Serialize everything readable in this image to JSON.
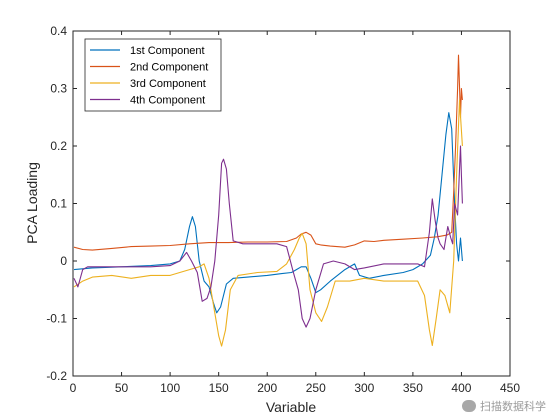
{
  "chart_data": {
    "type": "line",
    "xlabel": "Variable",
    "ylabel": "PCA Loading",
    "xlim": [
      0,
      450
    ],
    "ylim": [
      -0.2,
      0.4
    ],
    "xticks": [
      0,
      50,
      100,
      150,
      200,
      250,
      300,
      350,
      400,
      450
    ],
    "yticks": [
      -0.2,
      -0.1,
      0,
      0.1,
      0.2,
      0.3,
      0.4
    ],
    "xtick_labels": [
      "0",
      "50",
      "100",
      "150",
      "200",
      "250",
      "300",
      "350",
      "400",
      "450"
    ],
    "ytick_labels": [
      "-0.2",
      "-0.1",
      "0",
      "0.1",
      "0.2",
      "0.3",
      "0.4"
    ],
    "legend_position": "top-left",
    "grid": false,
    "series": [
      {
        "name": "1st Component",
        "color": "#0072BD",
        "points": [
          [
            1,
            -0.015
          ],
          [
            20,
            -0.012
          ],
          [
            50,
            -0.01
          ],
          [
            80,
            -0.008
          ],
          [
            100,
            -0.005
          ],
          [
            110,
            0.0
          ],
          [
            115,
            0.02
          ],
          [
            120,
            0.06
          ],
          [
            123,
            0.077
          ],
          [
            126,
            0.06
          ],
          [
            130,
            0.0
          ],
          [
            135,
            -0.035
          ],
          [
            140,
            -0.045
          ],
          [
            145,
            -0.075
          ],
          [
            148,
            -0.09
          ],
          [
            152,
            -0.08
          ],
          [
            158,
            -0.04
          ],
          [
            165,
            -0.03
          ],
          [
            180,
            -0.028
          ],
          [
            200,
            -0.025
          ],
          [
            215,
            -0.022
          ],
          [
            225,
            -0.02
          ],
          [
            230,
            -0.015
          ],
          [
            235,
            -0.01
          ],
          [
            240,
            -0.01
          ],
          [
            245,
            -0.03
          ],
          [
            250,
            -0.055
          ],
          [
            255,
            -0.05
          ],
          [
            265,
            -0.035
          ],
          [
            280,
            -0.015
          ],
          [
            290,
            -0.005
          ],
          [
            295,
            -0.025
          ],
          [
            305,
            -0.03
          ],
          [
            320,
            -0.025
          ],
          [
            340,
            -0.02
          ],
          [
            350,
            -0.015
          ],
          [
            360,
            -0.005
          ],
          [
            368,
            0.01
          ],
          [
            372,
            0.04
          ],
          [
            376,
            0.08
          ],
          [
            380,
            0.15
          ],
          [
            384,
            0.22
          ],
          [
            387,
            0.258
          ],
          [
            390,
            0.23
          ],
          [
            393,
            0.1
          ],
          [
            395,
            0.03
          ],
          [
            397,
            0.0
          ],
          [
            399,
            0.04
          ],
          [
            401,
            0.0
          ]
        ]
      },
      {
        "name": "2nd Component",
        "color": "#D95319",
        "points": [
          [
            1,
            0.024
          ],
          [
            10,
            0.02
          ],
          [
            20,
            0.019
          ],
          [
            40,
            0.022
          ],
          [
            60,
            0.025
          ],
          [
            80,
            0.026
          ],
          [
            100,
            0.027
          ],
          [
            120,
            0.03
          ],
          [
            140,
            0.032
          ],
          [
            160,
            0.032
          ],
          [
            180,
            0.033
          ],
          [
            200,
            0.033
          ],
          [
            220,
            0.034
          ],
          [
            230,
            0.04
          ],
          [
            235,
            0.047
          ],
          [
            240,
            0.05
          ],
          [
            245,
            0.045
          ],
          [
            250,
            0.03
          ],
          [
            255,
            0.028
          ],
          [
            265,
            0.026
          ],
          [
            280,
            0.024
          ],
          [
            290,
            0.028
          ],
          [
            300,
            0.035
          ],
          [
            310,
            0.034
          ],
          [
            320,
            0.036
          ],
          [
            340,
            0.038
          ],
          [
            360,
            0.04
          ],
          [
            375,
            0.042
          ],
          [
            385,
            0.045
          ],
          [
            390,
            0.05
          ],
          [
            392,
            0.12
          ],
          [
            394,
            0.2
          ],
          [
            396,
            0.3
          ],
          [
            397,
            0.358
          ],
          [
            399,
            0.25
          ],
          [
            400,
            0.3
          ],
          [
            401,
            0.28
          ]
        ]
      },
      {
        "name": "3rd Component",
        "color": "#EDB120",
        "points": [
          [
            1,
            -0.045
          ],
          [
            10,
            -0.035
          ],
          [
            20,
            -0.028
          ],
          [
            40,
            -0.025
          ],
          [
            60,
            -0.03
          ],
          [
            80,
            -0.025
          ],
          [
            100,
            -0.025
          ],
          [
            110,
            -0.02
          ],
          [
            120,
            -0.015
          ],
          [
            130,
            -0.01
          ],
          [
            135,
            -0.005
          ],
          [
            140,
            -0.03
          ],
          [
            145,
            -0.08
          ],
          [
            150,
            -0.13
          ],
          [
            153,
            -0.148
          ],
          [
            157,
            -0.12
          ],
          [
            162,
            -0.05
          ],
          [
            170,
            -0.025
          ],
          [
            190,
            -0.02
          ],
          [
            210,
            -0.018
          ],
          [
            220,
            -0.005
          ],
          [
            228,
            0.02
          ],
          [
            233,
            0.04
          ],
          [
            236,
            0.048
          ],
          [
            240,
            0.03
          ],
          [
            244,
            -0.05
          ],
          [
            250,
            -0.09
          ],
          [
            256,
            -0.105
          ],
          [
            262,
            -0.08
          ],
          [
            270,
            -0.035
          ],
          [
            285,
            -0.035
          ],
          [
            300,
            -0.03
          ],
          [
            320,
            -0.035
          ],
          [
            340,
            -0.035
          ],
          [
            355,
            -0.035
          ],
          [
            362,
            -0.06
          ],
          [
            367,
            -0.12
          ],
          [
            370,
            -0.147
          ],
          [
            374,
            -0.1
          ],
          [
            378,
            -0.05
          ],
          [
            383,
            -0.06
          ],
          [
            388,
            -0.09
          ],
          [
            392,
            0.0
          ],
          [
            395,
            0.15
          ],
          [
            398,
            0.28
          ],
          [
            401,
            0.2
          ]
        ]
      },
      {
        "name": "4th Component",
        "color": "#7E2F8E",
        "points": [
          [
            1,
            -0.03
          ],
          [
            5,
            -0.045
          ],
          [
            10,
            -0.015
          ],
          [
            15,
            -0.01
          ],
          [
            30,
            -0.01
          ],
          [
            50,
            -0.01
          ],
          [
            80,
            -0.01
          ],
          [
            100,
            -0.008
          ],
          [
            110,
            0.0
          ],
          [
            117,
            0.015
          ],
          [
            122,
            0.0
          ],
          [
            128,
            -0.02
          ],
          [
            133,
            -0.07
          ],
          [
            138,
            -0.065
          ],
          [
            142,
            -0.045
          ],
          [
            146,
            0.0
          ],
          [
            150,
            0.08
          ],
          [
            153,
            0.17
          ],
          [
            155,
            0.177
          ],
          [
            158,
            0.16
          ],
          [
            161,
            0.1
          ],
          [
            165,
            0.035
          ],
          [
            175,
            0.03
          ],
          [
            190,
            0.03
          ],
          [
            210,
            0.03
          ],
          [
            220,
            0.025
          ],
          [
            227,
            -0.02
          ],
          [
            232,
            -0.05
          ],
          [
            236,
            -0.1
          ],
          [
            240,
            -0.115
          ],
          [
            244,
            -0.1
          ],
          [
            250,
            -0.05
          ],
          [
            258,
            -0.005
          ],
          [
            268,
            0.0
          ],
          [
            280,
            -0.005
          ],
          [
            290,
            -0.015
          ],
          [
            300,
            -0.012
          ],
          [
            320,
            -0.005
          ],
          [
            340,
            -0.005
          ],
          [
            355,
            -0.005
          ],
          [
            362,
            -0.01
          ],
          [
            367,
            0.05
          ],
          [
            370,
            0.108
          ],
          [
            373,
            0.07
          ],
          [
            376,
            0.04
          ],
          [
            378,
            0.03
          ],
          [
            382,
            0.02
          ],
          [
            386,
            0.06
          ],
          [
            389,
            0.04
          ],
          [
            391,
            0.03
          ],
          [
            393,
            0.1
          ],
          [
            396,
            0.08
          ],
          [
            399,
            0.2
          ],
          [
            400,
            0.15
          ],
          [
            401,
            0.1
          ]
        ]
      }
    ]
  },
  "watermark": {
    "text": "扫描数据科学",
    "icon": "wechat-icon"
  }
}
